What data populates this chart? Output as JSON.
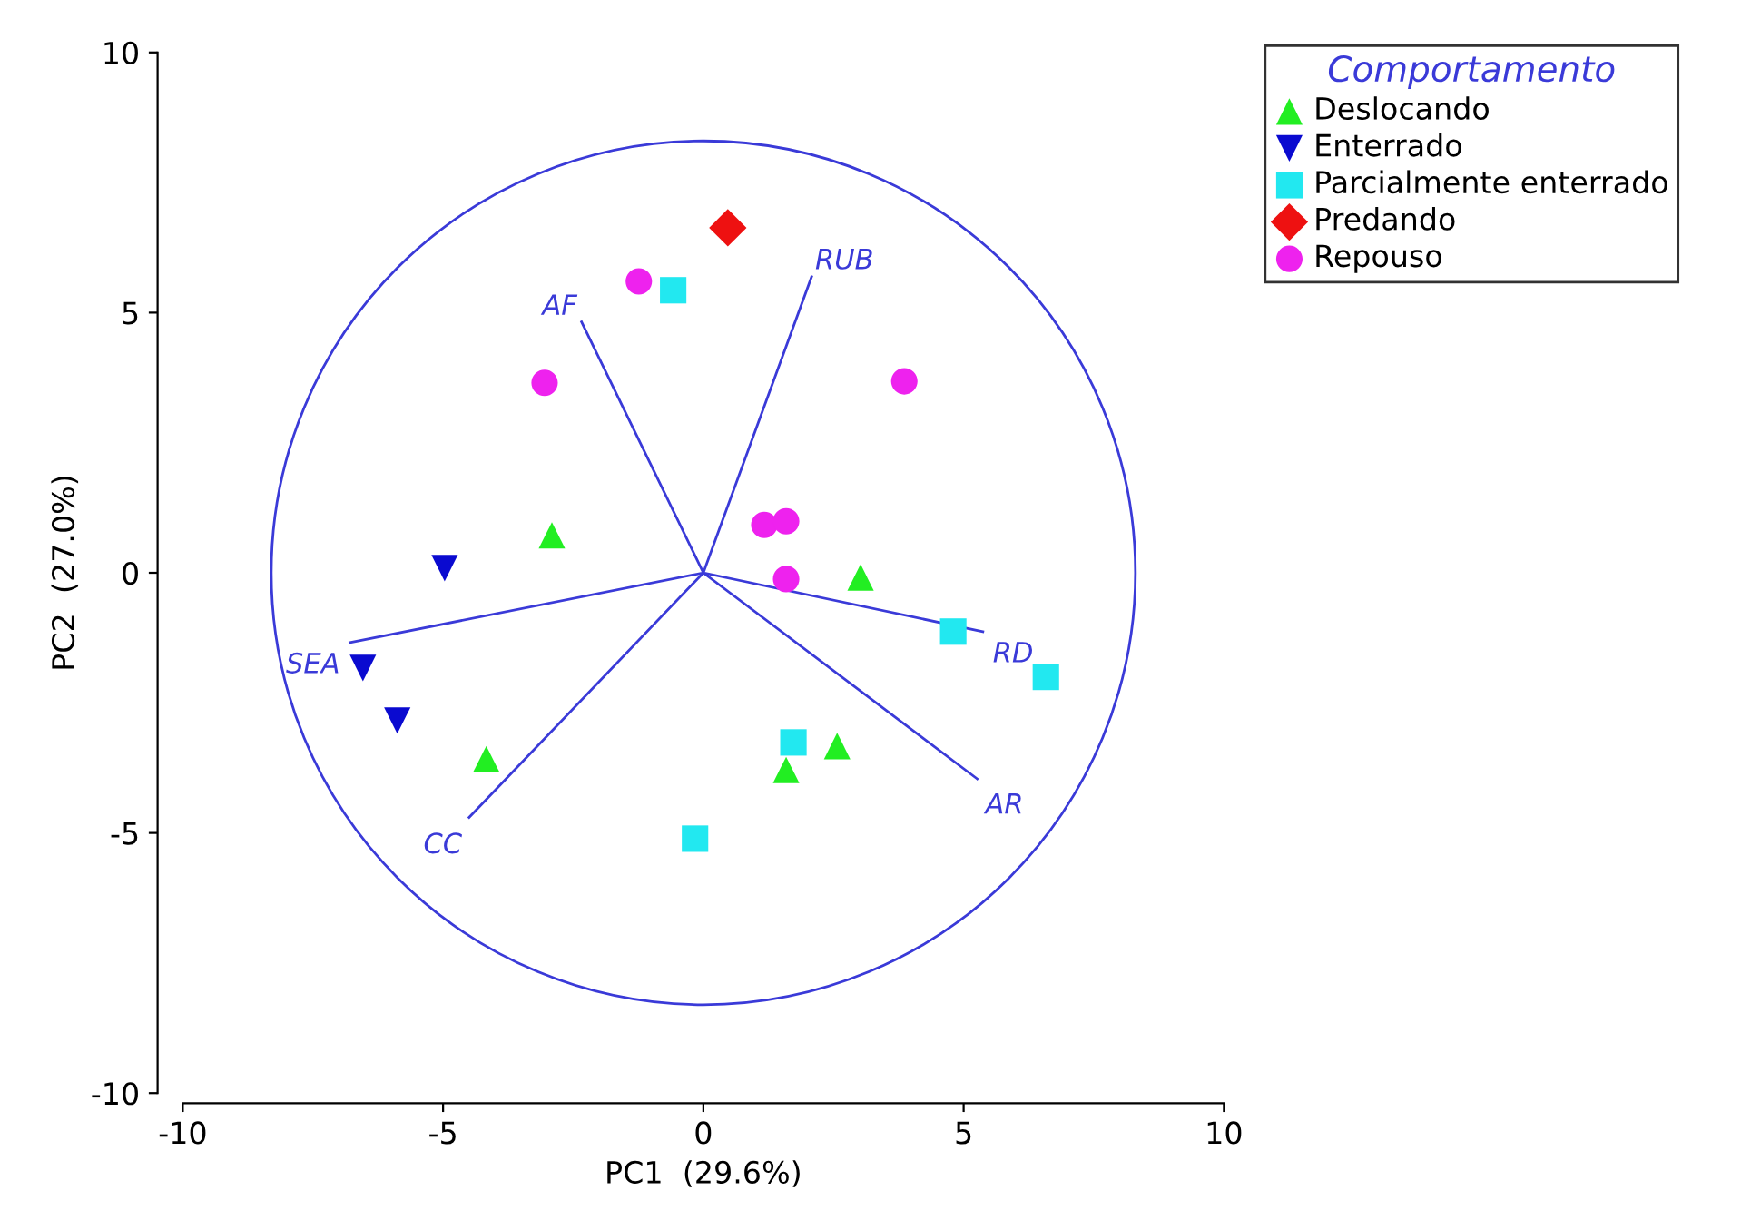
{
  "chart_data": {
    "type": "scatter",
    "xlabel": "PC1  (29.6%)",
    "ylabel": "PC2  (27.0%)",
    "legend_title": "Comportamento",
    "legend": "top right",
    "grid": false,
    "xlim": [
      -10,
      10
    ],
    "ylim": [
      -10,
      10
    ],
    "xticks": [
      -10,
      -5,
      0,
      5,
      10
    ],
    "yticks": [
      -10,
      -5,
      0,
      5,
      10
    ],
    "series": [
      {
        "name": "Deslocando",
        "color": "#22ee22",
        "marker": "triangle",
        "x": [
          -2.91,
          3.02,
          -4.17,
          1.59,
          2.57
        ],
        "values": [
          0.72,
          -0.09,
          -3.58,
          -3.79,
          -3.33
        ]
      },
      {
        "name": "Enterrado",
        "color": "#0a0ad0",
        "marker": "triangle-down",
        "x": [
          -4.97,
          -6.54,
          -5.88
        ],
        "values": [
          0.09,
          -1.83,
          -2.84
        ]
      },
      {
        "name": "Parcialmente enterrado",
        "color": "#22e8f0",
        "marker": "square",
        "x": [
          -0.58,
          1.73,
          -0.16,
          4.8,
          6.58
        ],
        "values": [
          5.43,
          -3.26,
          -5.11,
          -1.13,
          -2.0
        ]
      },
      {
        "name": "Predando",
        "color": "#ee1111",
        "marker": "diamond",
        "x": [
          0.47
        ],
        "values": [
          6.63
        ]
      },
      {
        "name": "Repouso",
        "color": "#ee22ee",
        "marker": "circle",
        "x": [
          -1.24,
          -3.05,
          3.86,
          1.17,
          1.59,
          1.59
        ],
        "values": [
          5.6,
          3.65,
          3.68,
          0.92,
          0.99,
          -0.12
        ]
      },
      {
        "type": "line",
        "color": "#3a3ad8",
        "marker": "none",
        "x": [
          0,
          -2.34,
          null,
          0,
          2.08,
          null,
          0,
          5.37,
          null,
          0,
          5.26,
          null,
          0,
          -6.79,
          null,
          0,
          -4.5
        ],
        "values": [
          0,
          4.82,
          null,
          0,
          5.69,
          null,
          0,
          -1.13,
          null,
          0,
          -3.96,
          null,
          0,
          -1.34,
          null,
          0,
          -4.7
        ]
      }
    ],
    "annotations": [
      {
        "text": "AF",
        "x": -2.34,
        "y": 4.82
      },
      {
        "text": "RUB",
        "x": 2.08,
        "y": 5.69
      },
      {
        "text": "RD",
        "x": 5.37,
        "y": -1.13
      },
      {
        "text": "AR",
        "x": 5.26,
        "y": -3.96
      },
      {
        "text": "SEA",
        "x": -6.79,
        "y": -1.34
      },
      {
        "text": "CC",
        "x": -4.5,
        "y": -4.7
      }
    ]
  }
}
